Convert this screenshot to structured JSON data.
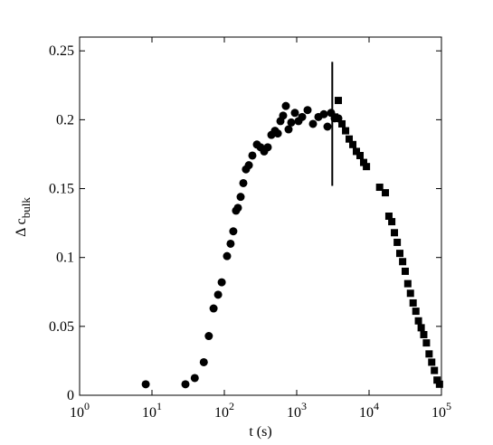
{
  "chart_data": {
    "type": "scatter",
    "xlabel": "t (s)",
    "ylabel": "Δ c",
    "ylabel_sub": "bulk",
    "xscale": "log",
    "xlim": [
      1,
      100000
    ],
    "xticks": [
      {
        "value": 1,
        "label": "10",
        "sup": "0"
      },
      {
        "value": 10,
        "label": "10",
        "sup": "1"
      },
      {
        "value": 100,
        "label": "10",
        "sup": "2"
      },
      {
        "value": 1000,
        "label": "10",
        "sup": "3"
      },
      {
        "value": 10000,
        "label": "10",
        "sup": "4"
      },
      {
        "value": 100000,
        "label": "10",
        "sup": "5"
      }
    ],
    "ylim": [
      0,
      0.26
    ],
    "yticks": [
      0,
      0.05,
      0.1,
      0.15,
      0.2,
      0.25
    ],
    "series": [
      {
        "marker": "circle",
        "color": "#000000",
        "x": [
          8.2,
          29,
          39,
          52,
          61,
          71,
          82,
          92,
          109,
          122,
          133,
          145,
          154,
          168,
          183,
          199,
          218,
          244,
          282,
          316,
          355,
          398,
          447,
          501,
          548,
          596,
          649,
          708,
          772,
          841,
          944,
          1059,
          1189,
          1413,
          1679,
          1995,
          2371,
          2661,
          2985,
          3350,
          3760
        ],
        "values": [
          0.008,
          0.008,
          0.0125,
          0.024,
          0.043,
          0.063,
          0.073,
          0.082,
          0.101,
          0.11,
          0.119,
          0.134,
          0.136,
          0.144,
          0.154,
          0.164,
          0.167,
          0.174,
          0.182,
          0.18,
          0.177,
          0.18,
          0.189,
          0.192,
          0.19,
          0.199,
          0.203,
          0.21,
          0.193,
          0.198,
          0.205,
          0.199,
          0.202,
          0.207,
          0.197,
          0.202,
          0.204,
          0.195,
          0.205,
          0.201,
          0.201
        ]
      },
      {
        "marker": "square",
        "color": "#000000",
        "x": [
          3350,
          3760,
          4220,
          4740,
          5310,
          5960,
          6680,
          7500,
          8410,
          9200,
          14000,
          16800,
          18800,
          20600,
          22400,
          24500,
          26600,
          29100,
          31600,
          34300,
          37300,
          40600,
          44300,
          48100,
          52500,
          57000,
          62000,
          67500,
          73400,
          79900,
          87000,
          94000
        ],
        "values": [
          0.202,
          0.214,
          0.197,
          0.192,
          0.186,
          0.182,
          0.177,
          0.174,
          0.169,
          0.166,
          0.151,
          0.147,
          0.13,
          0.126,
          0.118,
          0.111,
          0.103,
          0.097,
          0.09,
          0.081,
          0.074,
          0.067,
          0.061,
          0.054,
          0.049,
          0.044,
          0.038,
          0.03,
          0.024,
          0.018,
          0.011,
          0.008
        ]
      }
    ],
    "vline": {
      "x": 3100,
      "y": [
        0.152,
        0.242
      ]
    }
  }
}
